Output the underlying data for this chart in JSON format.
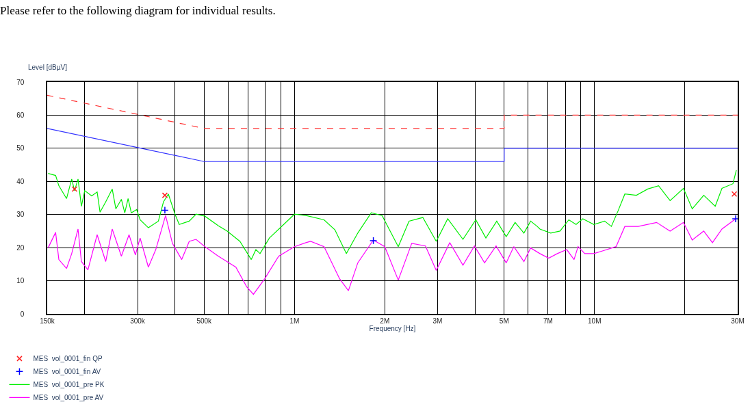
{
  "chart_data": {
    "type": "line",
    "title": "Please refer to the following diagram for individual results.",
    "xlabel": "Frequency [Hz]",
    "ylabel": "Level [dBµV]",
    "log": "x",
    "grid": true,
    "legend": "bottom left",
    "xlim": [
      150000,
      30000000
    ],
    "ylim": [
      0,
      70
    ],
    "xticks": [
      {
        "value": 150000,
        "label": "150k"
      },
      {
        "value": 200000,
        "label": null
      },
      {
        "value": 300000,
        "label": "300k"
      },
      {
        "value": 400000,
        "label": null
      },
      {
        "value": 500000,
        "label": "500k"
      },
      {
        "value": 600000,
        "label": null
      },
      {
        "value": 700000,
        "label": null
      },
      {
        "value": 800000,
        "label": null
      },
      {
        "value": 900000,
        "label": null
      },
      {
        "value": 1000000,
        "label": "1M"
      },
      {
        "value": 2000000,
        "label": "2M"
      },
      {
        "value": 3000000,
        "label": "3M"
      },
      {
        "value": 4000000,
        "label": null
      },
      {
        "value": 5000000,
        "label": "5M"
      },
      {
        "value": 6000000,
        "label": null
      },
      {
        "value": 7000000,
        "label": "7M"
      },
      {
        "value": 8000000,
        "label": null
      },
      {
        "value": 9000000,
        "label": null
      },
      {
        "value": 10000000,
        "label": "10M"
      },
      {
        "value": 20000000,
        "label": null
      },
      {
        "value": 30000000,
        "label": "30M"
      }
    ],
    "yticks": [
      0,
      10,
      20,
      30,
      40,
      50,
      60,
      70
    ],
    "series": [
      {
        "color": "#ff3333",
        "line_style": "dashed",
        "x": [
          150000,
          500000,
          5000000,
          5000000,
          30000000
        ],
        "values": [
          66,
          56,
          56,
          60,
          60
        ]
      },
      {
        "color": "#3333ff",
        "line_style": "solid",
        "x": [
          150000,
          500000,
          5000000,
          5000000,
          30000000
        ],
        "values": [
          56,
          46,
          46,
          50,
          50
        ]
      },
      {
        "name": "MES  vol_0001_pre PK",
        "color": "#00ee00",
        "x": [
          151000,
          160000,
          164000,
          174000,
          181000,
          185000,
          190000,
          195000,
          200000,
          211000,
          220000,
          225000,
          235000,
          247000,
          254000,
          265000,
          272000,
          279000,
          286000,
          298000,
          306000,
          326000,
          352000,
          366000,
          380000,
          400000,
          413000,
          446000,
          470000,
          503000,
          558000,
          597000,
          658000,
          718000,
          744000,
          768000,
          825000,
          921000,
          1000000,
          1092000,
          1255000,
          1364000,
          1489000,
          1626000,
          1803000,
          1959000,
          2218000,
          2409000,
          2678000,
          2969000,
          3242000,
          3644000,
          4021000,
          4345000,
          4723000,
          5078000,
          5437000,
          5817000,
          6125000,
          6443000,
          6578000,
          7146000,
          7676000,
          8210000,
          8680000,
          9141000,
          9948000,
          10810000,
          11380000,
          11980000,
          12620000,
          13790000,
          15050000,
          16350000,
          17860000,
          19790000,
          21170000,
          23120000,
          25250000,
          26590000,
          28930000,
          29690000
        ],
        "values": [
          42.4,
          41.8,
          38.7,
          34.8,
          40.7,
          37.2,
          40.7,
          32.5,
          37.2,
          35.6,
          36.8,
          30.7,
          33.8,
          37.7,
          31.7,
          34.6,
          30.5,
          34.8,
          30.5,
          31.5,
          28.4,
          26.0,
          28.0,
          33.8,
          36.2,
          30.1,
          27.0,
          28.0,
          30.1,
          29.5,
          26.6,
          25.0,
          21.9,
          16.4,
          19.4,
          18.2,
          22.9,
          27.0,
          30.1,
          29.7,
          28.4,
          25.4,
          18.2,
          24.4,
          30.5,
          29.7,
          20.3,
          28.0,
          29.1,
          21.9,
          28.7,
          22.5,
          28.4,
          22.9,
          28.0,
          23.3,
          27.6,
          24.4,
          28.0,
          26.4,
          25.6,
          24.4,
          25.0,
          28.4,
          27.0,
          28.7,
          27.0,
          28.0,
          26.4,
          31.1,
          36.2,
          35.8,
          37.7,
          38.7,
          34.2,
          37.9,
          31.7,
          35.8,
          32.5,
          37.9,
          39.3,
          43.4
        ]
      },
      {
        "name": "MES  vol_0001_pre AV",
        "color": "#ff00ff",
        "x": [
          151000,
          160000,
          164000,
          174000,
          181000,
          190000,
          195000,
          205000,
          220000,
          235000,
          247000,
          265000,
          281000,
          295000,
          306000,
          326000,
          345000,
          372000,
          392000,
          421000,
          446000,
          470000,
          503000,
          558000,
          638000,
          693000,
          730000,
          796000,
          886000,
          1000000,
          1092000,
          1132000,
          1255000,
          1414000,
          1513000,
          1626000,
          1832000,
          2000000,
          2218000,
          2460000,
          2733000,
          2969000,
          3293000,
          3644000,
          3980000,
          4301000,
          4699000,
          5078000,
          5382000,
          5817000,
          6125000,
          6578000,
          7036000,
          7518000,
          8083000,
          8546000,
          8815000,
          9283000,
          9948000,
          10810000,
          11800000,
          12620000,
          13990000,
          16100000,
          17860000,
          19790000,
          21170000,
          23120000,
          24720000,
          26590000,
          29540000
        ],
        "values": [
          19.9,
          24.6,
          16.4,
          13.7,
          18.2,
          25.6,
          15.8,
          13.3,
          23.9,
          15.8,
          25.6,
          17.4,
          23.9,
          17.8,
          22.9,
          14.1,
          19.4,
          29.7,
          21.3,
          16.4,
          21.9,
          22.5,
          20.3,
          17.4,
          14.1,
          8.2,
          5.9,
          10.6,
          17.4,
          20.3,
          21.5,
          21.9,
          20.3,
          10.6,
          7.0,
          15.4,
          22.3,
          20.3,
          10.2,
          21.3,
          20.5,
          13.1,
          21.5,
          14.7,
          20.5,
          15.4,
          20.5,
          15.4,
          20.3,
          15.8,
          19.9,
          18.2,
          16.8,
          18.2,
          19.4,
          16.4,
          20.3,
          18.2,
          18.2,
          19.2,
          20.3,
          26.4,
          26.4,
          27.6,
          25.0,
          27.6,
          22.3,
          25.0,
          21.5,
          25.6,
          28.7
        ]
      },
      {
        "type": "scatter",
        "name": "MES  vol_0001_fin QP",
        "color": "#ff2222",
        "marker": "cross",
        "x": [
          185000,
          370000,
          29230000
        ],
        "values": [
          37.7,
          35.8,
          36.2
        ]
      },
      {
        "type": "scatter",
        "name": "MES  vol_0001_fin AV",
        "color": "#0000ff",
        "marker": "plus",
        "x": [
          370000,
          1832000,
          29540000
        ],
        "values": [
          31.3,
          22.1,
          28.7
        ]
      }
    ]
  }
}
